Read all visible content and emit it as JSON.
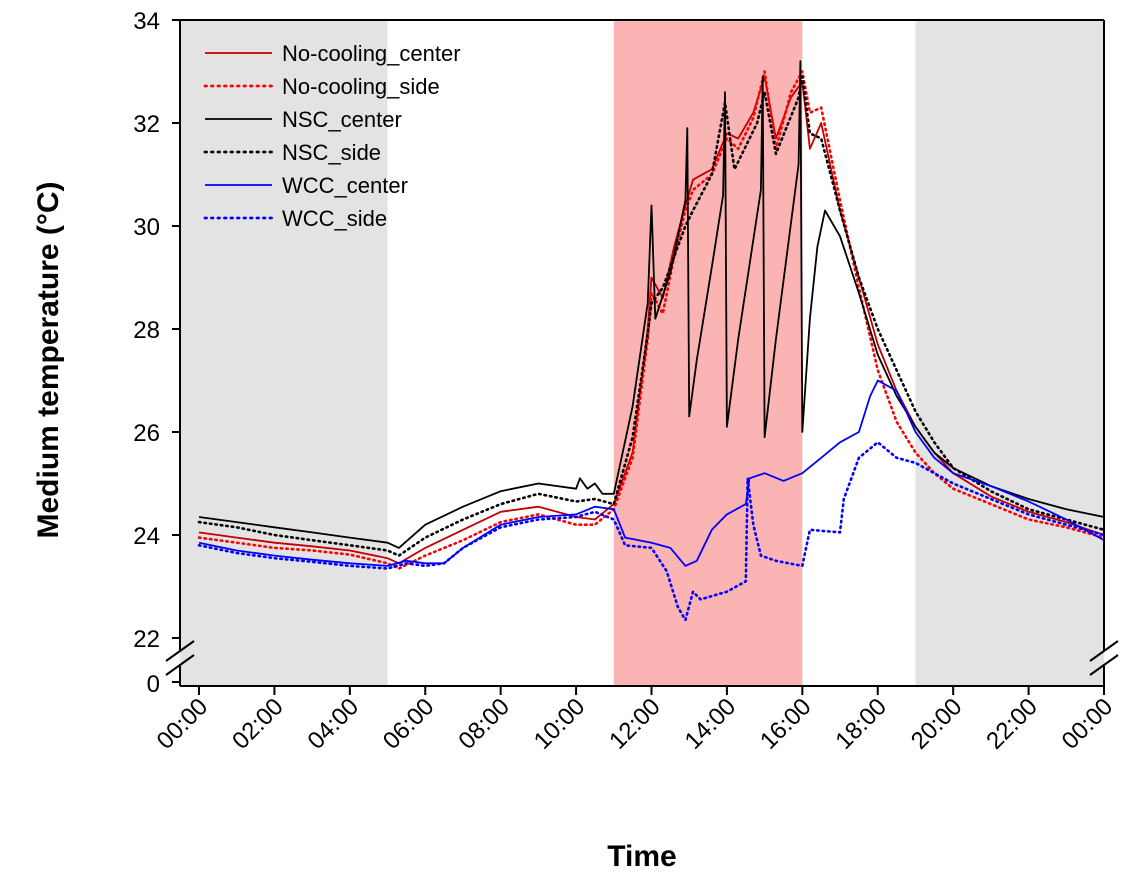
{
  "chart_data": {
    "type": "line",
    "xlabel": "Time",
    "ylabel": "Medium temperature (°C)",
    "x_ticks": [
      "00:00",
      "02:00",
      "04:00",
      "06:00",
      "08:00",
      "10:00",
      "12:00",
      "14:00",
      "16:00",
      "18:00",
      "20:00",
      "22:00",
      "00:00"
    ],
    "x_range_hours": [
      -0.5,
      24
    ],
    "y_ticks": [
      22,
      24,
      26,
      28,
      30,
      32,
      34
    ],
    "y_axis_break_label": "0",
    "ylim": [
      22,
      34
    ],
    "grid": false,
    "legend_position": "top-left",
    "shaded_regions": [
      {
        "from": -0.5,
        "to": 5,
        "color": "#e3e3e3"
      },
      {
        "from": 11,
        "to": 16,
        "color": "#fbb4b4"
      },
      {
        "from": 19,
        "to": 24,
        "color": "#e3e3e3"
      }
    ],
    "series": [
      {
        "name": "No-cooling_center",
        "color": "#c00000",
        "dash": "solid",
        "points": [
          [
            0,
            24.05
          ],
          [
            1,
            23.95
          ],
          [
            2,
            23.85
          ],
          [
            3,
            23.78
          ],
          [
            4,
            23.7
          ],
          [
            5,
            23.55
          ],
          [
            5.3,
            23.45
          ],
          [
            6,
            23.75
          ],
          [
            7,
            24.1
          ],
          [
            8,
            24.45
          ],
          [
            9,
            24.55
          ],
          [
            10,
            24.35
          ],
          [
            10.5,
            24.3
          ],
          [
            11,
            24.6
          ],
          [
            11.5,
            25.6
          ],
          [
            11.9,
            28.0
          ],
          [
            12,
            29.0
          ],
          [
            12.3,
            28.6
          ],
          [
            12.6,
            29.6
          ],
          [
            12.9,
            30.4
          ],
          [
            13.1,
            30.9
          ],
          [
            13.6,
            31.1
          ],
          [
            14,
            31.8
          ],
          [
            14.3,
            31.7
          ],
          [
            14.7,
            32.2
          ],
          [
            15,
            32.9
          ],
          [
            15.3,
            31.7
          ],
          [
            15.7,
            32.5
          ],
          [
            16,
            32.8
          ],
          [
            16.2,
            31.5
          ],
          [
            16.5,
            32.0
          ],
          [
            17,
            30.3
          ],
          [
            17.5,
            29.0
          ],
          [
            18,
            27.7
          ],
          [
            18.5,
            26.8
          ],
          [
            19,
            26.1
          ],
          [
            19.5,
            25.6
          ],
          [
            20,
            25.2
          ],
          [
            21,
            24.75
          ],
          [
            22,
            24.45
          ],
          [
            23,
            24.25
          ],
          [
            24,
            24.0
          ]
        ]
      },
      {
        "name": "No-cooling_side",
        "color": "#ff0000",
        "dash": "dotted",
        "points": [
          [
            0,
            23.95
          ],
          [
            1,
            23.85
          ],
          [
            2,
            23.75
          ],
          [
            3,
            23.7
          ],
          [
            4,
            23.62
          ],
          [
            5,
            23.45
          ],
          [
            5.3,
            23.35
          ],
          [
            6,
            23.6
          ],
          [
            7,
            23.9
          ],
          [
            8,
            24.25
          ],
          [
            9,
            24.4
          ],
          [
            10,
            24.2
          ],
          [
            10.5,
            24.2
          ],
          [
            11,
            24.5
          ],
          [
            11.5,
            25.5
          ],
          [
            11.9,
            27.8
          ],
          [
            12,
            28.7
          ],
          [
            12.3,
            28.3
          ],
          [
            12.6,
            29.4
          ],
          [
            12.9,
            30.3
          ],
          [
            13.1,
            30.7
          ],
          [
            13.6,
            31.0
          ],
          [
            14,
            31.7
          ],
          [
            14.3,
            31.5
          ],
          [
            14.7,
            32.1
          ],
          [
            15,
            33.0
          ],
          [
            15.3,
            31.5
          ],
          [
            15.7,
            32.6
          ],
          [
            16,
            33.0
          ],
          [
            16.2,
            32.2
          ],
          [
            16.5,
            32.3
          ],
          [
            17,
            30.5
          ],
          [
            17.5,
            28.8
          ],
          [
            18,
            27.2
          ],
          [
            18.5,
            26.2
          ],
          [
            19,
            25.6
          ],
          [
            19.5,
            25.2
          ],
          [
            20,
            24.9
          ],
          [
            21,
            24.6
          ],
          [
            22,
            24.3
          ],
          [
            23,
            24.15
          ],
          [
            24,
            23.95
          ]
        ]
      },
      {
        "name": "NSC_center",
        "color": "#000000",
        "dash": "solid",
        "points": [
          [
            0,
            24.35
          ],
          [
            1,
            24.25
          ],
          [
            2,
            24.15
          ],
          [
            3,
            24.05
          ],
          [
            4,
            23.95
          ],
          [
            5,
            23.85
          ],
          [
            5.3,
            23.75
          ],
          [
            6,
            24.2
          ],
          [
            7,
            24.55
          ],
          [
            8,
            24.85
          ],
          [
            9,
            25.0
          ],
          [
            10,
            24.9
          ],
          [
            10.1,
            25.1
          ],
          [
            10.3,
            24.9
          ],
          [
            10.5,
            25.0
          ],
          [
            10.7,
            24.8
          ],
          [
            11,
            24.8
          ],
          [
            11.5,
            26.5
          ],
          [
            11.9,
            28.5
          ],
          [
            12,
            30.4
          ],
          [
            12.1,
            28.2
          ],
          [
            12.5,
            29.1
          ],
          [
            12.9,
            30.5
          ],
          [
            12.95,
            31.9
          ],
          [
            13,
            26.3
          ],
          [
            13.2,
            27.4
          ],
          [
            13.6,
            29.2
          ],
          [
            13.9,
            30.6
          ],
          [
            13.95,
            32.6
          ],
          [
            14,
            26.1
          ],
          [
            14.3,
            27.8
          ],
          [
            14.9,
            30.7
          ],
          [
            14.95,
            32.9
          ],
          [
            15,
            25.9
          ],
          [
            15.3,
            27.8
          ],
          [
            15.9,
            31.2
          ],
          [
            15.95,
            33.2
          ],
          [
            16,
            26.0
          ],
          [
            16.2,
            28.2
          ],
          [
            16.4,
            29.6
          ],
          [
            16.6,
            30.3
          ],
          [
            17,
            29.8
          ],
          [
            17.5,
            28.7
          ],
          [
            18,
            27.5
          ],
          [
            18.5,
            26.7
          ],
          [
            19,
            26.1
          ],
          [
            19.5,
            25.6
          ],
          [
            20,
            25.3
          ],
          [
            21,
            24.95
          ],
          [
            22,
            24.7
          ],
          [
            23,
            24.5
          ],
          [
            24,
            24.35
          ]
        ]
      },
      {
        "name": "NSC_side",
        "color": "#000000",
        "dash": "dotted",
        "points": [
          [
            0,
            24.25
          ],
          [
            1,
            24.15
          ],
          [
            2,
            24.0
          ],
          [
            3,
            23.9
          ],
          [
            4,
            23.8
          ],
          [
            5,
            23.7
          ],
          [
            5.3,
            23.6
          ],
          [
            6,
            23.95
          ],
          [
            7,
            24.3
          ],
          [
            8,
            24.6
          ],
          [
            9,
            24.8
          ],
          [
            10,
            24.65
          ],
          [
            10.5,
            24.7
          ],
          [
            11,
            24.6
          ],
          [
            11.5,
            25.9
          ],
          [
            11.9,
            27.9
          ],
          [
            12,
            28.5
          ],
          [
            12.3,
            28.8
          ],
          [
            12.9,
            30.0
          ],
          [
            13.1,
            30.3
          ],
          [
            13.6,
            31.0
          ],
          [
            13.95,
            32.4
          ],
          [
            14.2,
            31.1
          ],
          [
            14.8,
            32.0
          ],
          [
            15,
            32.6
          ],
          [
            15.3,
            31.4
          ],
          [
            15.9,
            32.5
          ],
          [
            16,
            32.9
          ],
          [
            16.2,
            31.8
          ],
          [
            16.5,
            31.7
          ],
          [
            17,
            30.3
          ],
          [
            17.5,
            29.0
          ],
          [
            18,
            28.0
          ],
          [
            18.5,
            27.2
          ],
          [
            19,
            26.4
          ],
          [
            19.5,
            25.8
          ],
          [
            20,
            25.3
          ],
          [
            21,
            24.85
          ],
          [
            22,
            24.5
          ],
          [
            23,
            24.3
          ],
          [
            24,
            24.1
          ]
        ]
      },
      {
        "name": "WCC_center",
        "color": "#0000ff",
        "dash": "solid",
        "points": [
          [
            0,
            23.85
          ],
          [
            1,
            23.7
          ],
          [
            2,
            23.6
          ],
          [
            3,
            23.52
          ],
          [
            4,
            23.45
          ],
          [
            5,
            23.4
          ],
          [
            5.5,
            23.5
          ],
          [
            6,
            23.45
          ],
          [
            6.5,
            23.45
          ],
          [
            7,
            23.75
          ],
          [
            8,
            24.2
          ],
          [
            9,
            24.35
          ],
          [
            10,
            24.4
          ],
          [
            10.5,
            24.55
          ],
          [
            11,
            24.5
          ],
          [
            11.3,
            23.95
          ],
          [
            12,
            23.85
          ],
          [
            12.5,
            23.75
          ],
          [
            12.9,
            23.4
          ],
          [
            13.2,
            23.5
          ],
          [
            13.6,
            24.1
          ],
          [
            14,
            24.4
          ],
          [
            14.5,
            24.6
          ],
          [
            14.6,
            25.1
          ],
          [
            15,
            25.2
          ],
          [
            15.5,
            25.05
          ],
          [
            16,
            25.2
          ],
          [
            16.5,
            25.5
          ],
          [
            17,
            25.8
          ],
          [
            17.5,
            26.0
          ],
          [
            17.8,
            26.7
          ],
          [
            18,
            27.0
          ],
          [
            18.5,
            26.8
          ],
          [
            19,
            26.0
          ],
          [
            19.5,
            25.5
          ],
          [
            20,
            25.2
          ],
          [
            21,
            24.95
          ],
          [
            22,
            24.65
          ],
          [
            23,
            24.3
          ],
          [
            24,
            23.9
          ]
        ]
      },
      {
        "name": "WCC_side",
        "color": "#0000ff",
        "dash": "dotted",
        "points": [
          [
            0,
            23.8
          ],
          [
            1,
            23.65
          ],
          [
            2,
            23.55
          ],
          [
            3,
            23.48
          ],
          [
            4,
            23.4
          ],
          [
            5,
            23.35
          ],
          [
            5.5,
            23.45
          ],
          [
            6,
            23.4
          ],
          [
            6.5,
            23.45
          ],
          [
            7,
            23.75
          ],
          [
            8,
            24.15
          ],
          [
            9,
            24.3
          ],
          [
            10,
            24.35
          ],
          [
            10.5,
            24.45
          ],
          [
            11,
            24.3
          ],
          [
            11.3,
            23.8
          ],
          [
            12,
            23.75
          ],
          [
            12.4,
            23.3
          ],
          [
            12.7,
            22.6
          ],
          [
            12.9,
            22.35
          ],
          [
            13.1,
            22.9
          ],
          [
            13.3,
            22.75
          ],
          [
            14,
            22.9
          ],
          [
            14.5,
            23.1
          ],
          [
            14.55,
            25.1
          ],
          [
            14.7,
            24.2
          ],
          [
            14.9,
            23.6
          ],
          [
            15.3,
            23.5
          ],
          [
            16,
            23.4
          ],
          [
            16.2,
            24.1
          ],
          [
            17,
            24.05
          ],
          [
            17.1,
            24.7
          ],
          [
            17.5,
            25.5
          ],
          [
            18,
            25.8
          ],
          [
            18.5,
            25.5
          ],
          [
            19,
            25.4
          ],
          [
            19.5,
            25.2
          ],
          [
            20,
            25.0
          ],
          [
            21,
            24.7
          ],
          [
            22,
            24.4
          ],
          [
            23,
            24.2
          ],
          [
            24,
            24.0
          ]
        ]
      }
    ]
  }
}
